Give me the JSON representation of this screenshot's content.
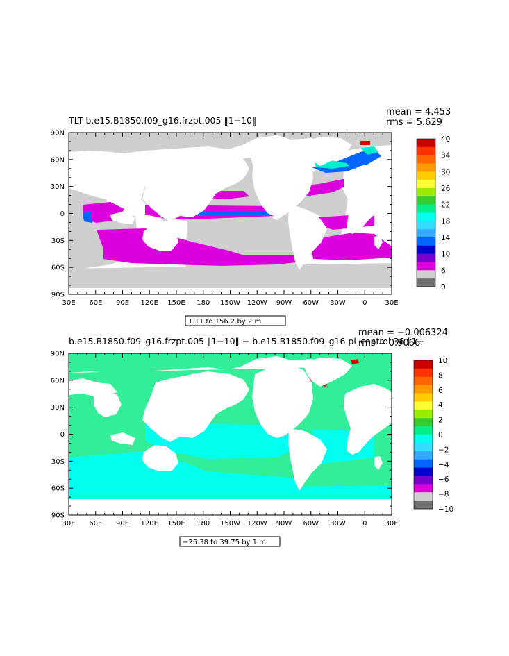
{
  "panels": [
    {
      "title": "TLT b.e15.B1850.f09_g16.frzpt.005 ‖1−10‖",
      "mean_text": "mean = 4.453",
      "rms_text": "rms = 5.629",
      "range_text": "1.11 to 156.2 by 2 m",
      "colorbar_labels": [
        "40",
        "34",
        "30",
        "26",
        "22",
        "18",
        "14",
        "10",
        "6",
        "0"
      ],
      "colorbar_colors": [
        "#cc0000",
        "#ff3300",
        "#ff6600",
        "#ff9900",
        "#ffcc00",
        "#ffff33",
        "#99ee00",
        "#33cc33",
        "#00ee88",
        "#00ffee",
        "#33ddff",
        "#33aaff",
        "#0066ff",
        "#0000cc",
        "#7700cc",
        "#dd00dd",
        "#cfcfcf",
        "#6f6f6f"
      ]
    },
    {
      "title": "b.e15.B1850.f09_g16.frzpt.005 ‖1−10‖ − b.e15.B1850.f09_g16.pi_control.36 ‖1−",
      "mean_text": "mean = −0.006324",
      "rms_text": "rms = 0.9066",
      "range_text": "−25.38 to 39.75 by 1 m",
      "colorbar_labels": [
        "10",
        "8",
        "6",
        "4",
        "2",
        "0",
        "−2",
        "−4",
        "−6",
        "−8",
        "−10"
      ],
      "colorbar_colors": [
        "#cc0000",
        "#ff3300",
        "#ff6600",
        "#ff9900",
        "#ffcc00",
        "#ffff33",
        "#99ee00",
        "#33cc33",
        "#00ee88",
        "#00ffee",
        "#33ddff",
        "#33aaff",
        "#0066ff",
        "#0000cc",
        "#7700cc",
        "#dd00dd",
        "#cfcfcf",
        "#6f6f6f"
      ]
    }
  ],
  "axes": {
    "lat_labels": [
      "90N",
      "60N",
      "30N",
      "0",
      "30S",
      "60S",
      "90S"
    ],
    "lon_labels": [
      "30E",
      "60E",
      "90E",
      "120E",
      "150E",
      "180",
      "150W",
      "120W",
      "90W",
      "60W",
      "30W",
      "0",
      "30E"
    ]
  }
}
